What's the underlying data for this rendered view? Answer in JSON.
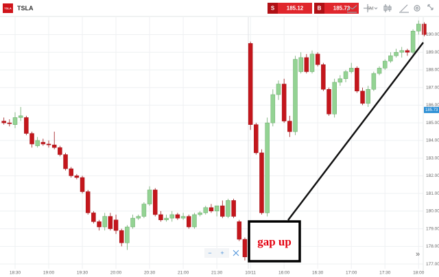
{
  "toolbar": {
    "logo": "TSLA",
    "symbol": "TSLA",
    "sell_label": "S",
    "sell_price": 185.12,
    "buy_label": "B",
    "buy_price": 185.73,
    "timeframe": "5M",
    "zoom_out": "−",
    "zoom_in": "+",
    "scroll_end": "»"
  },
  "chart_data": {
    "type": "candlestick",
    "categories": [
      null,
      null,
      "18:30",
      null,
      null,
      null,
      null,
      null,
      "19:00",
      null,
      null,
      null,
      null,
      null,
      "19:30",
      null,
      null,
      null,
      null,
      null,
      "20:00",
      null,
      null,
      null,
      null,
      null,
      "20:30",
      null,
      null,
      null,
      null,
      null,
      "21:00",
      null,
      null,
      null,
      null,
      null,
      "21:30",
      null,
      null,
      null,
      null,
      null,
      "10/11",
      null,
      null,
      null,
      null,
      null,
      "16:00",
      null,
      null,
      null,
      null,
      null,
      "16:30",
      null,
      null,
      null,
      null,
      null,
      "17:00",
      null,
      null,
      null,
      null,
      null,
      "17:30",
      null,
      null,
      null,
      null,
      null,
      "18:00",
      null
    ],
    "open": [
      185.1,
      185.0,
      184.9,
      185.3,
      185.3,
      184.4,
      183.7,
      183.9,
      183.8,
      183.75,
      183.6,
      183.2,
      182.4,
      182.0,
      181.9,
      181.1,
      179.9,
      179.4,
      179.1,
      179.7,
      179.5,
      178.9,
      178.2,
      179.1,
      179.6,
      179.7,
      180.4,
      181.2,
      179.8,
      179.5,
      179.6,
      179.8,
      179.6,
      179.7,
      179.1,
      179.8,
      179.9,
      180.2,
      180.0,
      180.3,
      179.7,
      180.6,
      179.4,
      178.4,
      189.5,
      184.9,
      183.3,
      179.9,
      185.0,
      186.6,
      187.2,
      185.1,
      184.5,
      187.9,
      188.7,
      187.9,
      188.9,
      188.3,
      186.9,
      185.5,
      187.3,
      187.5,
      187.9,
      188.1,
      186.8,
      186.1,
      186.9,
      187.8,
      188.1,
      188.5,
      188.8,
      189.0,
      189.1,
      189.0,
      190.2,
      190.6
    ],
    "high": [
      185.3,
      185.2,
      185.6,
      185.9,
      185.4,
      184.5,
      184.2,
      184.1,
      184.0,
      184.5,
      183.7,
      183.3,
      182.5,
      182.1,
      182.0,
      181.2,
      180.0,
      179.5,
      179.9,
      179.9,
      179.8,
      179.0,
      179.2,
      179.8,
      179.8,
      180.5,
      181.4,
      181.3,
      180.0,
      179.8,
      180.0,
      179.9,
      179.9,
      179.8,
      179.9,
      180.0,
      180.3,
      180.4,
      180.3,
      180.6,
      180.7,
      180.7,
      179.5,
      178.5,
      189.6,
      185.0,
      183.5,
      185.3,
      186.9,
      187.4,
      187.5,
      185.4,
      188.8,
      189.0,
      188.9,
      189.1,
      189.0,
      188.4,
      187.0,
      187.5,
      187.7,
      188.0,
      188.4,
      188.2,
      187.0,
      187.1,
      187.9,
      188.2,
      188.6,
      189.0,
      189.2,
      189.3,
      189.2,
      190.3,
      190.8,
      190.7
    ],
    "low": [
      184.9,
      184.8,
      184.7,
      185.1,
      184.3,
      183.6,
      183.6,
      183.7,
      183.6,
      183.5,
      183.1,
      182.3,
      181.9,
      181.8,
      181.0,
      179.8,
      179.3,
      178.9,
      178.9,
      178.9,
      178.7,
      178.0,
      177.8,
      179.0,
      179.5,
      179.6,
      180.3,
      179.7,
      179.4,
      179.4,
      179.4,
      179.5,
      179.5,
      179.0,
      179.0,
      179.7,
      179.8,
      179.9,
      179.7,
      179.6,
      179.6,
      179.6,
      178.3,
      177.2,
      184.6,
      183.2,
      179.8,
      179.7,
      184.8,
      186.3,
      185.0,
      184.2,
      184.3,
      187.8,
      187.8,
      187.8,
      188.2,
      186.8,
      185.4,
      185.3,
      187.1,
      187.3,
      187.8,
      186.7,
      186.0,
      185.9,
      186.8,
      187.7,
      188.0,
      188.4,
      188.7,
      188.7,
      188.8,
      188.9,
      190.0,
      189.9
    ],
    "close": [
      185.0,
      184.95,
      185.3,
      185.4,
      184.4,
      183.8,
      184.0,
      183.8,
      183.75,
      183.6,
      183.2,
      182.4,
      182.0,
      181.9,
      181.1,
      179.9,
      179.4,
      179.1,
      179.7,
      179.0,
      178.9,
      178.2,
      179.1,
      179.6,
      179.7,
      180.4,
      181.2,
      179.8,
      179.5,
      179.6,
      179.8,
      179.6,
      179.7,
      179.1,
      179.8,
      179.9,
      180.2,
      180.0,
      180.3,
      179.7,
      180.6,
      179.7,
      178.4,
      177.4,
      184.9,
      183.3,
      179.9,
      185.0,
      186.6,
      187.2,
      185.1,
      184.5,
      188.6,
      188.7,
      187.9,
      188.9,
      188.3,
      186.9,
      185.5,
      187.3,
      187.5,
      187.9,
      188.1,
      186.8,
      186.1,
      186.9,
      187.8,
      188.1,
      188.5,
      188.8,
      189.0,
      189.1,
      189.0,
      190.2,
      190.6,
      190.0
    ],
    "up_color": "#93d393",
    "down_color": "#c4161c",
    "ylim": [
      176.73,
      190.99
    ],
    "yticks": [
      {
        "value": 177,
        "label": "177.00"
      },
      {
        "value": 178,
        "label": "178.00"
      },
      {
        "value": 179,
        "label": "179.00"
      },
      {
        "value": 180,
        "label": "180.00"
      },
      {
        "value": 181,
        "label": "181.00"
      },
      {
        "value": 182,
        "label": "182.00"
      },
      {
        "value": 183,
        "label": "183.00"
      },
      {
        "value": 184,
        "label": "184.00"
      },
      {
        "value": 185,
        "label": "185.00"
      },
      {
        "value": 186,
        "label": "186.00"
      },
      {
        "value": 187,
        "label": "187.00"
      },
      {
        "value": 188,
        "label": "188.00"
      },
      {
        "value": 189,
        "label": "189.00"
      },
      {
        "value": 190,
        "label": "190.00"
      }
    ],
    "last_price": 185.73,
    "annotation": "gap up",
    "grid": true
  }
}
